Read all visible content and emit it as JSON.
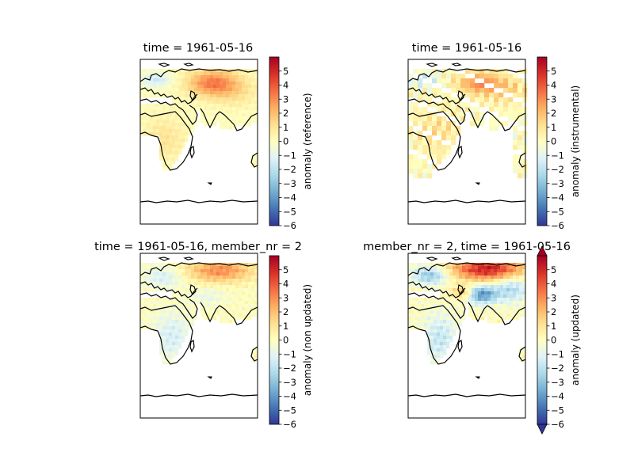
{
  "colormap": "RdYlBu_r",
  "colors": {
    "land_outline": "#000000",
    "missing": "#ffffff",
    "cmap_stops": [
      "#313695",
      "#4575b4",
      "#74add1",
      "#abd9e9",
      "#e0f3f8",
      "#ffffbf",
      "#fee090",
      "#fdae61",
      "#f46d43",
      "#d73027",
      "#a50026"
    ]
  },
  "panels": [
    {
      "title": "time = 1961-05-16",
      "colorbar_label": "anomaly (reference)",
      "colorbar_ticks": [
        "5",
        "4",
        "3",
        "2",
        "1",
        "0",
        "−1",
        "−2",
        "−3",
        "−4",
        "−5",
        "−6"
      ],
      "vmin": -6,
      "vmax": 6,
      "colorbar_extend": "neither",
      "field": "smooth reference anomaly, warm over central Asia (~+3), cool band over Scandinavia/Mediterranean, ocean masked"
    },
    {
      "title": "time = 1961-05-16",
      "colorbar_label": "anomaly (instrumental)",
      "colorbar_ticks": [
        "5",
        "4",
        "3",
        "2",
        "1",
        "0",
        "−1",
        "−2",
        "−3",
        "−4",
        "−5",
        "−6"
      ],
      "vmin": -6,
      "vmax": 6,
      "colorbar_extend": "neither",
      "field": "coarse station-gridded anomaly with missing cells, includes Atlantic and Southern Ocean points"
    },
    {
      "title": "time = 1961-05-16, member_nr = 2",
      "colorbar_label": "anomaly (non updated)",
      "colorbar_ticks": [
        "5",
        "4",
        "3",
        "2",
        "1",
        "0",
        "−1",
        "−2",
        "−3",
        "−4",
        "−5",
        "−6"
      ],
      "vmin": -6,
      "vmax": 6,
      "colorbar_extend": "neither",
      "field": "ensemble member 2 non-updated anomaly, warm northern Asia, cool Europe/Africa"
    },
    {
      "title": "member_nr = 2, time = 1961-05-16",
      "colorbar_label": "anomaly (updated)",
      "colorbar_ticks": [
        "5",
        "4",
        "3",
        "2",
        "1",
        "0",
        "−1",
        "−2",
        "−3",
        "−4",
        "−5",
        "−6"
      ],
      "vmin": -6,
      "vmax": 6,
      "colorbar_extend": "both",
      "field": "ensemble member 2 updated anomaly, strong warm Siberia (~+5), cool Tibet/Caspian (~-4)"
    }
  ]
}
